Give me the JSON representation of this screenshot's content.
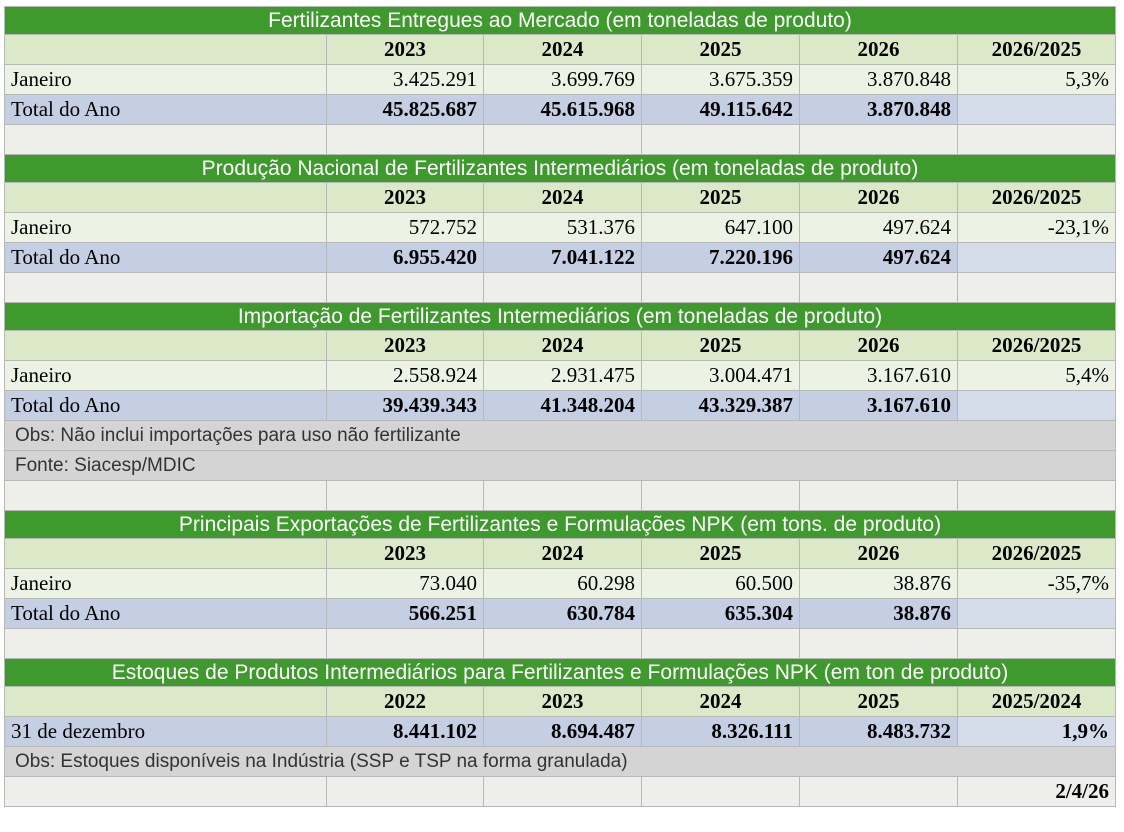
{
  "sections": [
    {
      "title": "Fertilizantes Entregues ao Mercado (em toneladas de produto)",
      "headers": [
        "2023",
        "2024",
        "2025",
        "2026",
        "2026/2025"
      ],
      "month_label": "Janeiro",
      "month_values": [
        "3.425.291",
        "3.699.769",
        "3.675.359",
        "3.870.848",
        "5,3%"
      ],
      "total_label": "Total do Ano",
      "total_values": [
        "45.825.687",
        "45.615.968",
        "49.115.642",
        "3.870.848"
      ]
    },
    {
      "title": "Produção Nacional de Fertilizantes Intermediários (em toneladas de produto)",
      "headers": [
        "2023",
        "2024",
        "2025",
        "2026",
        "2026/2025"
      ],
      "month_label": "Janeiro",
      "month_values": [
        "572.752",
        "531.376",
        "647.100",
        "497.624",
        "-23,1%"
      ],
      "total_label": "Total do Ano",
      "total_values": [
        "6.955.420",
        "7.041.122",
        "7.220.196",
        "497.624"
      ]
    },
    {
      "title": "Importação de Fertilizantes Intermediários (em toneladas de produto)",
      "headers": [
        "2023",
        "2024",
        "2025",
        "2026",
        "2026/2025"
      ],
      "month_label": "Janeiro",
      "month_values": [
        "2.558.924",
        "2.931.475",
        "3.004.471",
        "3.167.610",
        "5,4%"
      ],
      "total_label": "Total do Ano",
      "total_values": [
        "39.439.343",
        "41.348.204",
        "43.329.387",
        "3.167.610"
      ],
      "notes": [
        "Obs: Não inclui importações para uso não fertilizante",
        "Fonte: Siacesp/MDIC"
      ]
    },
    {
      "title": "Principais Exportações de Fertilizantes e Formulações NPK (em tons. de produto)",
      "headers": [
        "2023",
        "2024",
        "2025",
        "2026",
        "2026/2025"
      ],
      "month_label": "Janeiro",
      "month_values": [
        "73.040",
        "60.298",
        "60.500",
        "38.876",
        "-35,7%"
      ],
      "total_label": "Total do Ano",
      "total_values": [
        "566.251",
        "630.784",
        "635.304",
        "38.876"
      ]
    }
  ],
  "stocks": {
    "title": "Estoques de Produtos Intermediários para Fertilizantes e Formulações NPK (em ton de produto)",
    "headers": [
      "2022",
      "2023",
      "2024",
      "2025",
      "2025/2024"
    ],
    "row_label": "31 de dezembro",
    "values": [
      "8.441.102",
      "8.694.487",
      "8.326.111",
      "8.483.732",
      "1,9%"
    ],
    "note": "Obs: Estoques disponíveis na Indústria (SSP e TSP na forma granulada)",
    "date": "2/4/26"
  }
}
